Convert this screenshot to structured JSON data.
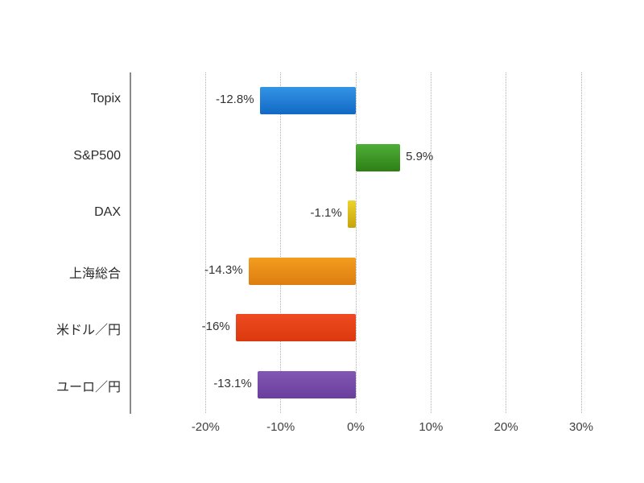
{
  "chart": {
    "background_color": "#ffffff",
    "axis_color": "#8a8a8a",
    "grid_color": "#b0b0b0",
    "value_label_color": "#333333",
    "category_label_color": "#2b2b2b",
    "tick_label_color": "#404040"
  },
  "chart_data": {
    "type": "bar",
    "orientation": "horizontal",
    "title": "",
    "xlabel": "",
    "ylabel": "",
    "categories": [
      "Topix",
      "S&P500",
      "DAX",
      "上海総合",
      "米ドル／円",
      "ユーロ／円"
    ],
    "values": [
      -12.8,
      5.9,
      -1.1,
      -14.3,
      -16,
      -13.1
    ],
    "value_labels": [
      "-12.8%",
      "5.9%",
      "-1.1%",
      "-14.3%",
      "-16%",
      "-13.1%"
    ],
    "bar_colors": [
      {
        "name": "blue",
        "top": "#3494e6",
        "bottom": "#1269c4"
      },
      {
        "name": "green",
        "top": "#4fae38",
        "bottom": "#2e7f16"
      },
      {
        "name": "yellow",
        "top": "#edd32e",
        "bottom": "#c7a30c"
      },
      {
        "name": "orange",
        "top": "#f39d1f",
        "bottom": "#dd7d10"
      },
      {
        "name": "red",
        "top": "#ef4b22",
        "bottom": "#dc380e"
      },
      {
        "name": "purple",
        "top": "#8257b4",
        "bottom": "#6a3e9c"
      }
    ],
    "x_ticks": [
      {
        "value": -20,
        "label": "-20%"
      },
      {
        "value": -10,
        "label": "-10%"
      },
      {
        "value": 0,
        "label": "0%"
      },
      {
        "value": 10,
        "label": "10%"
      },
      {
        "value": 20,
        "label": "20%"
      },
      {
        "value": 30,
        "label": "30%"
      }
    ],
    "xlim": [
      -30,
      30
    ],
    "grid": "vertical-dotted",
    "legend": "none"
  }
}
